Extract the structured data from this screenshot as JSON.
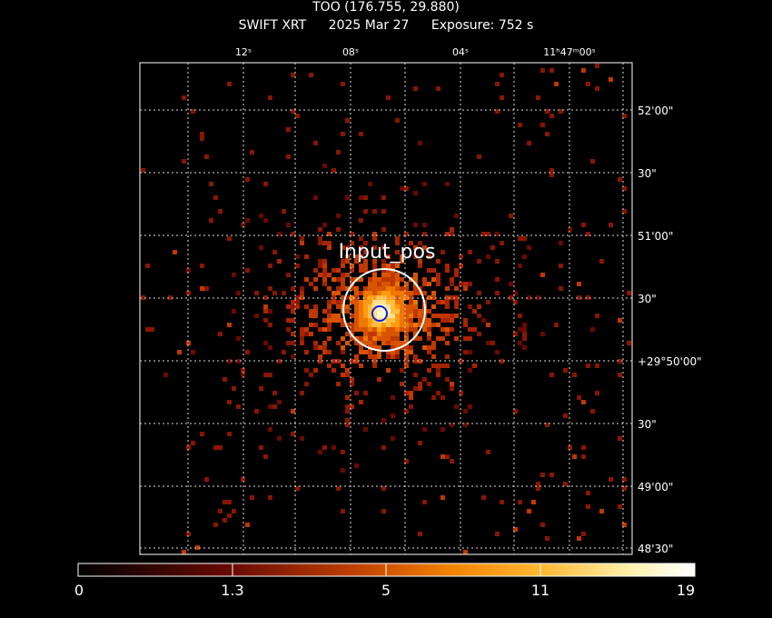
{
  "header": {
    "title": "TOO (176.755, 29.880)",
    "instrument": "SWIFT XRT",
    "date": "2025 Mar 27",
    "exposure": "Exposure: 752 s"
  },
  "axes": {
    "ra_ticks": [
      "12ˢ",
      "08ˢ",
      "04ˢ",
      "11ʰ47ᵐ00ˢ"
    ],
    "dec_ticks": [
      "52'00\"",
      "30\"",
      "51'00\"",
      "30\"",
      "+29°50'00\"",
      "30\"",
      "49'00\"",
      "48'30\""
    ]
  },
  "annotation": {
    "label": "Input_pos"
  },
  "colorbar": {
    "labels": [
      "0",
      "1.3",
      "5",
      "11",
      "19"
    ],
    "colors": [
      "#000000",
      "#5a0500",
      "#b03000",
      "#e86a00",
      "#ffb020",
      "#fff6c0",
      "#ffffff"
    ]
  }
}
